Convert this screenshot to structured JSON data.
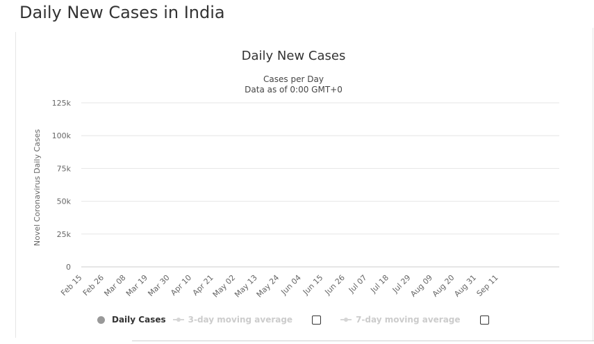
{
  "page": {
    "title": "Daily New Cases in India"
  },
  "chart_data": {
    "type": "bar",
    "title": "Daily New Cases",
    "subtitle": [
      "Cases per Day",
      "Data as of 0:00 GMT+0"
    ],
    "ylabel": "Novel Coronavirus Daily Cases",
    "xlabel": "",
    "ylim": [
      0,
      125000
    ],
    "yticks": [
      0,
      25000,
      50000,
      75000,
      100000,
      125000
    ],
    "ytick_labels": [
      "0",
      "25k",
      "50k",
      "75k",
      "100k",
      "125k"
    ],
    "xtick_labels": [
      "Feb 15",
      "Feb 26",
      "Mar 08",
      "Mar 19",
      "Mar 30",
      "Apr 10",
      "Apr 21",
      "May 02",
      "May 13",
      "May 24",
      "Jun 04",
      "Jun 15",
      "Jun 26",
      "Jul 07",
      "Jul 18",
      "Jul 29",
      "Aug 09",
      "Aug 20",
      "Aug 31",
      "Sep 11"
    ],
    "grid": true,
    "legend_position": "bottom",
    "colors": {
      "bar": "#999999",
      "grid": "#e6e6e6"
    },
    "x_start": "Feb 15",
    "series": [
      {
        "name": "Daily Cases",
        "values": [
          0,
          0,
          0,
          0,
          0,
          0,
          0,
          0,
          0,
          0,
          0,
          0,
          0,
          0,
          0,
          0,
          0,
          0,
          0,
          0,
          0,
          0,
          0,
          0,
          0,
          0,
          0,
          0,
          0,
          0,
          0,
          0,
          0,
          0,
          0,
          0,
          0,
          0,
          0,
          0,
          0,
          0,
          0,
          0,
          0,
          0,
          0,
          0,
          0,
          0,
          0,
          0,
          0,
          0,
          0,
          0,
          0,
          0,
          0,
          0,
          0,
          0,
          0,
          0,
          0,
          0,
          0,
          0,
          0,
          0,
          0,
          0,
          0,
          0,
          0,
          0,
          0,
          0,
          0,
          0,
          0,
          0,
          0,
          0,
          0,
          0,
          0,
          0,
          0,
          0,
          0,
          0,
          0,
          0,
          0,
          0,
          0,
          0,
          0,
          0,
          0,
          0,
          0,
          0,
          0,
          0,
          0,
          0,
          0,
          0,
          0,
          0,
          0,
          0,
          0,
          0,
          0,
          0,
          0,
          0,
          0,
          0,
          0,
          0,
          0,
          0,
          0,
          0,
          0,
          0,
          0,
          0,
          0,
          0,
          0,
          0,
          0,
          0,
          0,
          0,
          0,
          0,
          0,
          0,
          0,
          0,
          0,
          0,
          0,
          0,
          0,
          0,
          0,
          0,
          0,
          0,
          0,
          0,
          0,
          0,
          0,
          0,
          0,
          0,
          0,
          0,
          0,
          0,
          0,
          0,
          0,
          0,
          0,
          0,
          0,
          0,
          0,
          0,
          0,
          0,
          0,
          0,
          0,
          0,
          0,
          0,
          0,
          0,
          0,
          0,
          0,
          0,
          0,
          0,
          0,
          0,
          0,
          0,
          0,
          0,
          0,
          0,
          0,
          0,
          0,
          0,
          0,
          0,
          0,
          0,
          0,
          0,
          0,
          0,
          0,
          0,
          0,
          0,
          0,
          0,
          0,
          0,
          0,
          0,
          0,
          0,
          0,
          0,
          0,
          0,
          0,
          0,
          0,
          0,
          0,
          0,
          0,
          0,
          0,
          0
        ]
      },
      {
        "name": "3-day moving average",
        "values": []
      },
      {
        "name": "7-day moving average",
        "values": []
      }
    ]
  },
  "legend": {
    "daily_label": "Daily Cases",
    "ma3_label": "3-day moving average",
    "ma7_label": "7-day moving average"
  }
}
